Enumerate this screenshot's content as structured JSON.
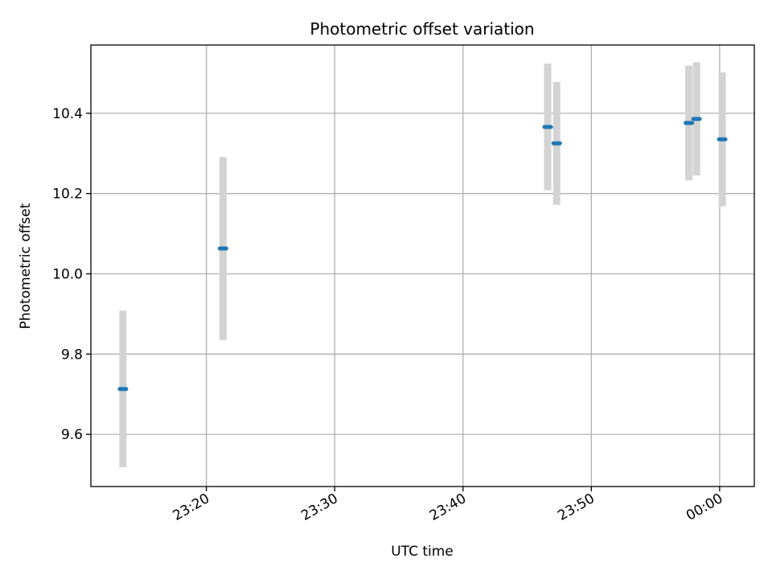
{
  "chart_data": {
    "type": "scatter",
    "title": "Photometric offset variation",
    "xlabel": "UTC time",
    "ylabel": "Photometric offset",
    "x_tick_labels": [
      "23:20",
      "23:30",
      "23:40",
      "23:50",
      "00:00"
    ],
    "x_tick_minutes": [
      80,
      90,
      100,
      110,
      120
    ],
    "y_tick_labels": [
      "9.6",
      "9.8",
      "10.0",
      "10.2",
      "10.4"
    ],
    "y_ticks": [
      9.6,
      9.8,
      10.0,
      10.2,
      10.4
    ],
    "xlim_minutes": [
      71,
      122.7
    ],
    "ylim": [
      9.47,
      10.57
    ],
    "grid": true,
    "series": [
      {
        "name": "Photometric offset",
        "color": "#1f77b4",
        "errorbar_color": "#d3d3d3",
        "points": [
          {
            "t": 73.5,
            "y": 9.713,
            "err": 0.195
          },
          {
            "t": 81.3,
            "y": 10.063,
            "err": 0.228
          },
          {
            "t": 106.6,
            "y": 10.366,
            "err": 0.158
          },
          {
            "t": 107.3,
            "y": 10.325,
            "err": 0.153
          },
          {
            "t": 117.6,
            "y": 10.376,
            "err": 0.143
          },
          {
            "t": 118.2,
            "y": 10.386,
            "err": 0.141
          },
          {
            "t": 120.2,
            "y": 10.335,
            "err": 0.167
          }
        ]
      }
    ]
  }
}
